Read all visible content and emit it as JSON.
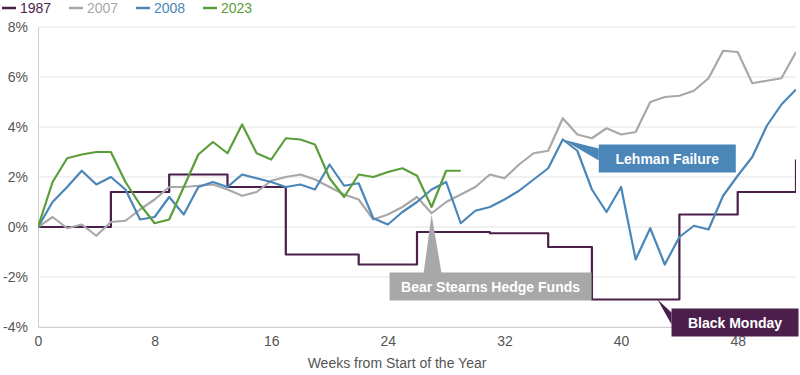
{
  "chart_data": {
    "type": "line",
    "x_label": "Weeks from Start of the Year",
    "x": [
      0,
      1,
      2,
      3,
      4,
      5,
      6,
      7,
      8,
      9,
      10,
      11,
      12,
      13,
      14,
      15,
      16,
      17,
      18,
      19,
      20,
      21,
      22,
      23,
      24,
      25,
      26,
      27,
      28,
      29,
      30,
      31,
      32,
      33,
      34,
      35,
      36,
      37,
      38,
      39,
      40,
      41,
      42,
      43,
      44,
      45,
      46,
      47,
      48,
      49,
      50,
      51,
      52
    ],
    "xlim": [
      0,
      52
    ],
    "xticks": [
      0,
      8,
      16,
      24,
      32,
      40,
      48
    ],
    "ylim": [
      -4,
      8
    ],
    "yticks": [
      {
        "value": -4,
        "label": "-4%"
      },
      {
        "value": -2,
        "label": "-2%"
      },
      {
        "value": 0,
        "label": "0%"
      },
      {
        "value": 2,
        "label": "2%"
      },
      {
        "value": 4,
        "label": "4%"
      },
      {
        "value": 6,
        "label": "6%"
      },
      {
        "value": 8,
        "label": "8%"
      }
    ],
    "grid": true,
    "legend": "top-left",
    "series": [
      {
        "name": "1987",
        "color": "#4b1e4b",
        "line_style": "step",
        "values": [
          0,
          0,
          0,
          0,
          0,
          1.4,
          1.4,
          1.4,
          1.4,
          2.1,
          2.1,
          2.1,
          2.1,
          1.6,
          1.6,
          1.6,
          1.6,
          -1.1,
          -1.1,
          -1.1,
          -1.1,
          -1.1,
          -1.5,
          -1.5,
          -1.5,
          -1.5,
          -0.2,
          -0.2,
          -0.2,
          -0.2,
          -0.2,
          -0.25,
          -0.25,
          -0.25,
          -0.25,
          -0.8,
          -0.8,
          -0.8,
          -2.9,
          -2.9,
          -2.9,
          -2.9,
          -2.9,
          -2.9,
          0.5,
          0.5,
          0.5,
          0.5,
          1.4,
          1.4,
          1.4,
          1.4,
          2.7
        ]
      },
      {
        "name": "2007",
        "color": "#a8a8a8",
        "line_style": "solid",
        "values": [
          0,
          0.4,
          -0.05,
          0.1,
          -0.35,
          0.2,
          0.25,
          0.7,
          1.1,
          1.6,
          1.6,
          1.65,
          1.7,
          1.5,
          1.25,
          1.4,
          1.85,
          2.0,
          2.1,
          1.9,
          1.6,
          1.3,
          1.1,
          0.3,
          0.5,
          0.8,
          1.2,
          0.55,
          1.0,
          1.3,
          1.6,
          2.1,
          1.95,
          2.5,
          2.95,
          3.05,
          4.35,
          3.7,
          3.55,
          3.95,
          3.7,
          3.8,
          5.0,
          5.2,
          5.25,
          5.45,
          5.95,
          7.05,
          7.0,
          5.75,
          5.85,
          5.95,
          7.0
        ]
      },
      {
        "name": "2008",
        "color": "#4a86b8",
        "line_style": "solid",
        "values": [
          0,
          1.0,
          1.6,
          2.25,
          1.7,
          2.0,
          1.5,
          0.3,
          0.4,
          1.2,
          0.5,
          1.6,
          1.8,
          1.6,
          2.1,
          1.95,
          1.8,
          1.6,
          1.7,
          1.5,
          2.5,
          1.65,
          1.75,
          0.35,
          0.1,
          0.6,
          1.0,
          1.5,
          1.8,
          0.15,
          0.65,
          0.8,
          1.1,
          1.45,
          1.9,
          2.35,
          3.5,
          3.05,
          1.5,
          0.6,
          1.6,
          -1.3,
          -0.05,
          -1.5,
          -0.4,
          0.05,
          -0.1,
          1.25,
          2.05,
          2.8,
          4.05,
          4.9,
          5.5
        ]
      },
      {
        "name": "2023",
        "color": "#5a9e3a",
        "line_style": "solid",
        "values": [
          0,
          1.8,
          2.75,
          2.9,
          3.0,
          3.0,
          1.8,
          0.9,
          0.15,
          0.3,
          1.6,
          2.9,
          3.4,
          2.95,
          4.1,
          2.95,
          2.7,
          3.55,
          3.5,
          3.3,
          1.95,
          1.2,
          2.1,
          2.0,
          2.2,
          2.35,
          2.05,
          0.8,
          2.25,
          2.25,
          null,
          null,
          null,
          null,
          null,
          null,
          null,
          null,
          null,
          null,
          null,
          null,
          null,
          null,
          null,
          null,
          null,
          null,
          null,
          null,
          null,
          null,
          null
        ]
      }
    ],
    "annotations": [
      {
        "text": "Lehman Failure",
        "x": 36,
        "y": 3.5,
        "color": "#4a86b8"
      },
      {
        "text": "Bear Stearns Hedge Funds",
        "x": 27,
        "y": 0.5,
        "color": "#a8a8a8"
      },
      {
        "text": "Black Monday",
        "x": 42.5,
        "y": -2.9,
        "color": "#4b1e4b"
      }
    ]
  }
}
